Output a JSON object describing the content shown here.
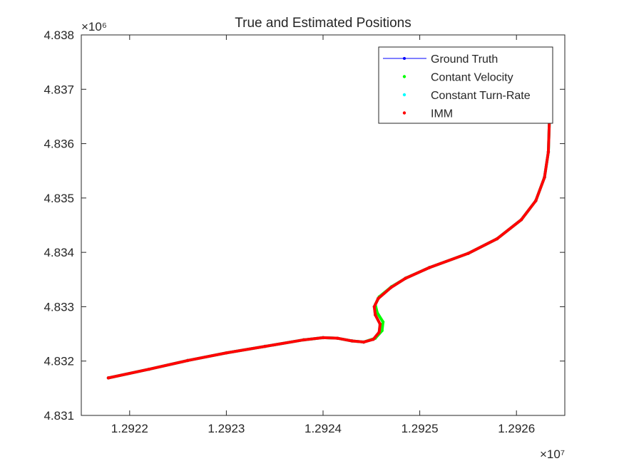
{
  "chart_data": {
    "type": "line",
    "title": "True and Estimated Positions",
    "xlabel": "",
    "ylabel": "",
    "xlim": [
      12921500,
      12926500
    ],
    "ylim": [
      4831000,
      4838000
    ],
    "x_exponent_label": "×10⁷",
    "y_exponent_label": "×10⁶",
    "x_ticks": [
      12922000,
      12923000,
      12924000,
      12925000,
      12926000
    ],
    "x_tick_labels": [
      "1.2922",
      "1.2923",
      "1.2924",
      "1.2925",
      "1.2926"
    ],
    "y_ticks": [
      4831000,
      4832000,
      4833000,
      4834000,
      4835000,
      4836000,
      4837000,
      4838000
    ],
    "y_tick_labels": [
      "4.831",
      "4.832",
      "4.833",
      "4.834",
      "4.835",
      "4.836",
      "4.837",
      "4.838"
    ],
    "grid": false,
    "legend_position": "top-right",
    "series": [
      {
        "name": "Ground Truth",
        "color": "#0000ff",
        "style": "line-with-dot-markers",
        "x": [
          12921780,
          12922200,
          12922600,
          12923000,
          12923400,
          12923800,
          12924000,
          12924150,
          12924300,
          12924420,
          12924520,
          12924580,
          12924590,
          12924540,
          12924530,
          12924570,
          12924700,
          12924850,
          12925100,
          12925500,
          12925800,
          12926050,
          12926200,
          12926290,
          12926330,
          12926340
        ],
        "y": [
          4831690,
          4831850,
          4832010,
          4832150,
          4832270,
          4832390,
          4832430,
          4832420,
          4832370,
          4832350,
          4832400,
          4832530,
          4832680,
          4832850,
          4833000,
          4833150,
          4833350,
          4833520,
          4833720,
          4833980,
          4834250,
          4834600,
          4834950,
          4835380,
          4835850,
          4836400
        ]
      },
      {
        "name": "Contant Velocity",
        "color": "#00ff00",
        "style": "dot-markers",
        "x": [
          12921780,
          12922200,
          12922600,
          12923000,
          12923400,
          12923800,
          12924000,
          12924150,
          12924300,
          12924420,
          12924540,
          12924610,
          12924620,
          12924560,
          12924540,
          12924580,
          12924710,
          12924860,
          12925100,
          12925500,
          12925800,
          12926050,
          12926200,
          12926290,
          12926330,
          12926340
        ],
        "y": [
          4831690,
          4831850,
          4832010,
          4832150,
          4832270,
          4832390,
          4832430,
          4832420,
          4832370,
          4832350,
          4832420,
          4832560,
          4832720,
          4832890,
          4833040,
          4833180,
          4833370,
          4833530,
          4833720,
          4833980,
          4834250,
          4834600,
          4834950,
          4835380,
          4835850,
          4836400
        ]
      },
      {
        "name": "Constant Turn-Rate",
        "color": "#00ffff",
        "style": "dot-markers",
        "x": [
          12921780,
          12922200,
          12922600,
          12923000,
          12923400,
          12923800,
          12924000,
          12924150,
          12924300,
          12924420,
          12924520,
          12924580,
          12924590,
          12924540,
          12924530,
          12924570,
          12924700,
          12924850,
          12925100,
          12925500,
          12925800,
          12926050,
          12926200,
          12926290,
          12926330,
          12926340
        ],
        "y": [
          4831690,
          4831850,
          4832010,
          4832150,
          4832270,
          4832390,
          4832430,
          4832420,
          4832370,
          4832350,
          4832400,
          4832530,
          4832680,
          4832850,
          4833000,
          4833150,
          4833350,
          4833520,
          4833720,
          4833980,
          4834250,
          4834600,
          4834950,
          4835380,
          4835850,
          4836400
        ]
      },
      {
        "name": "IMM",
        "color": "#ff0000",
        "style": "dot-markers",
        "x": [
          12921780,
          12922200,
          12922600,
          12923000,
          12923400,
          12923800,
          12924000,
          12924150,
          12924300,
          12924420,
          12924520,
          12924580,
          12924590,
          12924540,
          12924530,
          12924570,
          12924700,
          12924850,
          12925100,
          12925500,
          12925800,
          12926050,
          12926200,
          12926290,
          12926330,
          12926340
        ],
        "y": [
          4831690,
          4831850,
          4832010,
          4832150,
          4832270,
          4832390,
          4832430,
          4832420,
          4832370,
          4832350,
          4832400,
          4832530,
          4832680,
          4832850,
          4833000,
          4833150,
          4833350,
          4833520,
          4833720,
          4833980,
          4834250,
          4834600,
          4834950,
          4835380,
          4835850,
          4836400
        ]
      }
    ]
  }
}
